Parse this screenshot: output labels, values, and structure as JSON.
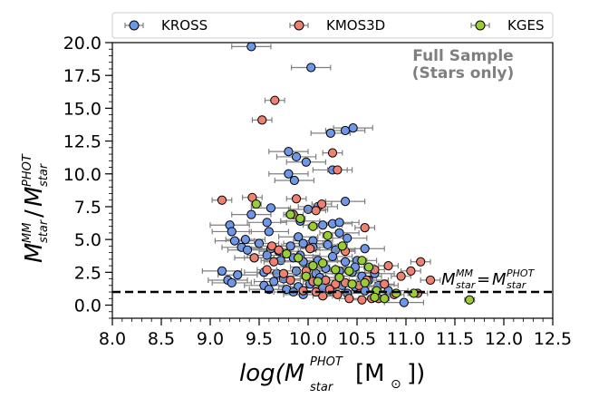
{
  "chart_data": {
    "type": "scatter",
    "xlabel": "log(M_star^PHOT [M_⊙])",
    "ylabel": "M_star^MM / M_star^PHOT",
    "xlim": [
      8.0,
      12.5
    ],
    "ylim": [
      -1.0,
      20.0
    ],
    "xticks": [
      "8.0",
      "8.5",
      "9.0",
      "9.5",
      "10.0",
      "10.5",
      "11.0",
      "11.5",
      "12.0",
      "12.5"
    ],
    "yticks": [
      "0.0",
      "2.5",
      "5.0",
      "7.5",
      "10.0",
      "12.5",
      "15.0",
      "17.5",
      "20.0"
    ],
    "legend_position": "top, outside plot",
    "annotation": "Full Sample (Stars only)",
    "reference_line": {
      "y": 1.0,
      "style": "dashed",
      "label": "M_star^MM = M_star^PHOT"
    },
    "series": [
      {
        "name": "KROSS",
        "color": "#6f97e8",
        "xerr": 0.2,
        "points": [
          [
            9.42,
            19.7
          ],
          [
            10.03,
            18.1
          ],
          [
            10.38,
            13.3
          ],
          [
            10.46,
            13.5
          ],
          [
            10.23,
            13.1
          ],
          [
            9.8,
            11.7
          ],
          [
            9.88,
            11.3
          ],
          [
            9.98,
            10.9
          ],
          [
            10.25,
            10.3
          ],
          [
            9.8,
            10.0
          ],
          [
            9.86,
            9.5
          ],
          [
            10.38,
            7.9
          ],
          [
            10.1,
            7.5
          ],
          [
            10.0,
            7.3
          ],
          [
            9.62,
            7.4
          ],
          [
            9.42,
            6.9
          ],
          [
            9.2,
            6.1
          ],
          [
            9.58,
            6.3
          ],
          [
            9.92,
            6.4
          ],
          [
            10.15,
            6.1
          ],
          [
            10.25,
            6.2
          ],
          [
            10.32,
            6.3
          ],
          [
            9.22,
            5.6
          ],
          [
            9.6,
            5.6
          ],
          [
            9.36,
            5.0
          ],
          [
            9.25,
            4.9
          ],
          [
            9.5,
            4.7
          ],
          [
            9.9,
            5.2
          ],
          [
            10.05,
            4.9
          ],
          [
            10.32,
            5.5
          ],
          [
            10.4,
            5.1
          ],
          [
            9.32,
            4.4
          ],
          [
            9.38,
            4.2
          ],
          [
            9.62,
            4.3
          ],
          [
            9.7,
            4.1
          ],
          [
            9.82,
            4.5
          ],
          [
            9.95,
            4.7
          ],
          [
            10.05,
            4.4
          ],
          [
            10.2,
            4.6
          ],
          [
            10.28,
            4.2
          ],
          [
            10.58,
            4.3
          ],
          [
            9.45,
            3.6
          ],
          [
            9.58,
            3.8
          ],
          [
            9.72,
            3.4
          ],
          [
            9.85,
            3.6
          ],
          [
            9.95,
            3.3
          ],
          [
            10.1,
            3.4
          ],
          [
            10.25,
            3.7
          ],
          [
            10.38,
            3.3
          ],
          [
            10.5,
            3.4
          ],
          [
            9.12,
            2.6
          ],
          [
            9.18,
            1.9
          ],
          [
            9.28,
            2.3
          ],
          [
            9.55,
            2.5
          ],
          [
            9.68,
            2.4
          ],
          [
            9.75,
            2.0
          ],
          [
            9.88,
            2.6
          ],
          [
            9.98,
            2.2
          ],
          [
            10.08,
            2.4
          ],
          [
            10.18,
            2.8
          ],
          [
            10.32,
            2.6
          ],
          [
            10.45,
            2.5
          ],
          [
            10.55,
            2.2
          ],
          [
            10.68,
            2.4
          ],
          [
            9.22,
            1.7
          ],
          [
            9.55,
            1.5
          ],
          [
            9.65,
            1.8
          ],
          [
            9.78,
            1.2
          ],
          [
            9.9,
            1.4
          ],
          [
            9.95,
            0.8
          ],
          [
            10.02,
            1.6
          ],
          [
            10.15,
            1.3
          ],
          [
            10.25,
            1.0
          ],
          [
            10.35,
            1.5
          ],
          [
            10.48,
            1.4
          ],
          [
            10.58,
            1.1
          ],
          [
            10.62,
            1.9
          ],
          [
            10.72,
            1.5
          ],
          [
            9.6,
            1.2
          ],
          [
            9.85,
            1.0
          ],
          [
            10.4,
            0.9
          ],
          [
            10.98,
            0.2
          ],
          [
            10.82,
            1.1
          ],
          [
            10.02,
            2.9
          ],
          [
            10.12,
            2.1
          ],
          [
            9.92,
            3.8
          ],
          [
            10.48,
            2.9
          ]
        ]
      },
      {
        "name": "KMOS3D",
        "color": "#f08070",
        "xerr": 0.1,
        "points": [
          [
            9.66,
            15.6
          ],
          [
            9.53,
            14.1
          ],
          [
            10.25,
            11.6
          ],
          [
            10.3,
            10.3
          ],
          [
            9.12,
            8.0
          ],
          [
            9.43,
            8.2
          ],
          [
            9.88,
            8.1
          ],
          [
            10.14,
            7.7
          ],
          [
            10.08,
            7.2
          ],
          [
            9.85,
            6.9
          ],
          [
            10.58,
            5.9
          ],
          [
            9.45,
            3.6
          ],
          [
            9.63,
            4.5
          ],
          [
            9.7,
            4.2
          ],
          [
            10.02,
            4.3
          ],
          [
            10.38,
            4.1
          ],
          [
            9.58,
            2.7
          ],
          [
            9.75,
            2.4
          ],
          [
            9.82,
            1.9
          ],
          [
            9.98,
            2.6
          ],
          [
            10.05,
            1.8
          ],
          [
            10.18,
            1.9
          ],
          [
            10.28,
            1.6
          ],
          [
            10.38,
            1.7
          ],
          [
            10.52,
            1.5
          ],
          [
            10.6,
            1.9
          ],
          [
            10.68,
            2.7
          ],
          [
            10.78,
            1.6
          ],
          [
            10.82,
            3.0
          ],
          [
            10.88,
            0.8
          ],
          [
            10.95,
            2.2
          ],
          [
            11.05,
            2.6
          ],
          [
            11.15,
            3.3
          ],
          [
            11.25,
            1.9
          ],
          [
            11.12,
            0.9
          ],
          [
            10.42,
            0.5
          ],
          [
            10.65,
            0.5
          ],
          [
            10.15,
            0.7
          ],
          [
            10.3,
            0.8
          ],
          [
            10.55,
            0.4
          ],
          [
            10.72,
            0.5
          ],
          [
            9.95,
            1.1
          ],
          [
            10.08,
            1.0
          ],
          [
            10.22,
            1.2
          ],
          [
            9.65,
            3.3
          ]
        ]
      },
      {
        "name": "KGES",
        "color": "#9acd32",
        "xerr": 0.05,
        "points": [
          [
            9.47,
            7.7
          ],
          [
            9.82,
            6.9
          ],
          [
            9.92,
            6.6
          ],
          [
            10.05,
            6.0
          ],
          [
            10.2,
            5.3
          ],
          [
            10.35,
            4.5
          ],
          [
            9.78,
            3.9
          ],
          [
            9.9,
            3.6
          ],
          [
            10.05,
            3.0
          ],
          [
            10.15,
            3.2
          ],
          [
            10.28,
            2.7
          ],
          [
            10.42,
            2.6
          ],
          [
            10.55,
            3.4
          ],
          [
            10.62,
            2.9
          ],
          [
            9.98,
            2.2
          ],
          [
            10.1,
            1.8
          ],
          [
            10.32,
            2.1
          ],
          [
            10.45,
            1.6
          ],
          [
            10.58,
            1.7
          ],
          [
            10.7,
            1.1
          ],
          [
            10.68,
            0.6
          ],
          [
            10.78,
            0.5
          ],
          [
            10.9,
            0.9
          ],
          [
            11.08,
            0.9
          ],
          [
            11.65,
            0.4
          ]
        ]
      }
    ]
  }
}
